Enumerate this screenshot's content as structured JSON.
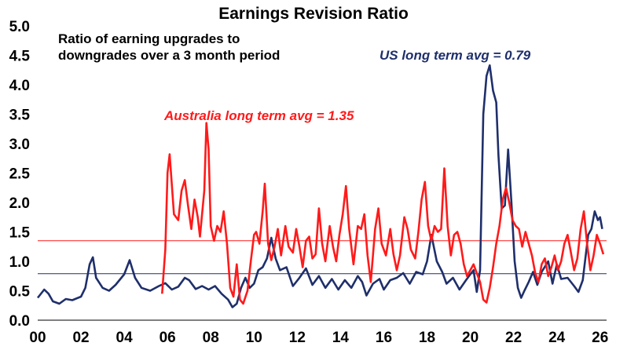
{
  "chart_data": {
    "type": "line",
    "title": "Earnings Revision Ratio",
    "annotations": {
      "description_line1": "Ratio of earning upgrades to",
      "description_line2": "downgrades over a 3 month period",
      "us_label": "US long term avg = 0.79",
      "au_label": "Australia long term avg = 1.35"
    },
    "x_tick_labels": [
      "00",
      "02",
      "04",
      "06",
      "08",
      "10",
      "12",
      "14",
      "16",
      "18",
      "20",
      "22",
      "24",
      "26"
    ],
    "y_tick_labels": [
      "0.0",
      "0.5",
      "1.0",
      "1.5",
      "2.0",
      "2.5",
      "3.0",
      "3.5",
      "4.0",
      "4.5",
      "5.0"
    ],
    "xlim": [
      2000,
      2026.3
    ],
    "ylim": [
      0,
      5
    ],
    "grid": false,
    "reference_lines": [
      {
        "name": "US long term avg",
        "value": 0.79,
        "color": "#1f2f6b"
      },
      {
        "name": "Australia long term avg",
        "value": 1.35,
        "color": "#ff1a1a"
      }
    ],
    "series": [
      {
        "name": "US",
        "color": "#1f2f6b",
        "points": [
          [
            2000.0,
            0.38
          ],
          [
            2000.3,
            0.52
          ],
          [
            2000.5,
            0.45
          ],
          [
            2000.7,
            0.32
          ],
          [
            2001.0,
            0.28
          ],
          [
            2001.3,
            0.36
          ],
          [
            2001.6,
            0.34
          ],
          [
            2002.0,
            0.4
          ],
          [
            2002.2,
            0.55
          ],
          [
            2002.4,
            0.95
          ],
          [
            2002.55,
            1.07
          ],
          [
            2002.7,
            0.72
          ],
          [
            2003.0,
            0.55
          ],
          [
            2003.3,
            0.5
          ],
          [
            2003.6,
            0.6
          ],
          [
            2004.0,
            0.78
          ],
          [
            2004.25,
            1.02
          ],
          [
            2004.5,
            0.72
          ],
          [
            2004.8,
            0.55
          ],
          [
            2005.2,
            0.5
          ],
          [
            2005.6,
            0.58
          ],
          [
            2005.9,
            0.63
          ],
          [
            2006.2,
            0.52
          ],
          [
            2006.5,
            0.57
          ],
          [
            2006.8,
            0.72
          ],
          [
            2007.0,
            0.68
          ],
          [
            2007.3,
            0.53
          ],
          [
            2007.6,
            0.58
          ],
          [
            2007.9,
            0.52
          ],
          [
            2008.2,
            0.58
          ],
          [
            2008.5,
            0.45
          ],
          [
            2008.8,
            0.35
          ],
          [
            2009.0,
            0.22
          ],
          [
            2009.2,
            0.28
          ],
          [
            2009.4,
            0.55
          ],
          [
            2009.6,
            0.72
          ],
          [
            2009.8,
            0.55
          ],
          [
            2010.0,
            0.62
          ],
          [
            2010.2,
            0.85
          ],
          [
            2010.4,
            0.9
          ],
          [
            2010.6,
            1.05
          ],
          [
            2010.8,
            1.4
          ],
          [
            2011.0,
            1.05
          ],
          [
            2011.2,
            0.85
          ],
          [
            2011.5,
            0.9
          ],
          [
            2011.8,
            0.58
          ],
          [
            2012.1,
            0.72
          ],
          [
            2012.4,
            0.88
          ],
          [
            2012.7,
            0.6
          ],
          [
            2013.0,
            0.75
          ],
          [
            2013.3,
            0.55
          ],
          [
            2013.6,
            0.7
          ],
          [
            2013.9,
            0.52
          ],
          [
            2014.2,
            0.68
          ],
          [
            2014.5,
            0.55
          ],
          [
            2014.8,
            0.75
          ],
          [
            2015.0,
            0.65
          ],
          [
            2015.2,
            0.42
          ],
          [
            2015.5,
            0.62
          ],
          [
            2015.8,
            0.7
          ],
          [
            2016.0,
            0.52
          ],
          [
            2016.3,
            0.68
          ],
          [
            2016.6,
            0.72
          ],
          [
            2016.9,
            0.8
          ],
          [
            2017.2,
            0.62
          ],
          [
            2017.5,
            0.82
          ],
          [
            2017.8,
            0.78
          ],
          [
            2018.0,
            1.0
          ],
          [
            2018.2,
            1.45
          ],
          [
            2018.45,
            1.0
          ],
          [
            2018.7,
            0.82
          ],
          [
            2018.9,
            0.62
          ],
          [
            2019.2,
            0.72
          ],
          [
            2019.5,
            0.52
          ],
          [
            2019.8,
            0.68
          ],
          [
            2020.0,
            0.78
          ],
          [
            2020.15,
            0.85
          ],
          [
            2020.3,
            0.48
          ],
          [
            2020.45,
            0.85
          ],
          [
            2020.6,
            3.5
          ],
          [
            2020.75,
            4.15
          ],
          [
            2020.9,
            4.33
          ],
          [
            2021.05,
            3.9
          ],
          [
            2021.2,
            3.7
          ],
          [
            2021.3,
            2.8
          ],
          [
            2021.45,
            1.9
          ],
          [
            2021.6,
            1.95
          ],
          [
            2021.75,
            2.9
          ],
          [
            2021.9,
            2.0
          ],
          [
            2022.05,
            1.0
          ],
          [
            2022.2,
            0.55
          ],
          [
            2022.35,
            0.38
          ],
          [
            2022.5,
            0.5
          ],
          [
            2022.7,
            0.65
          ],
          [
            2022.9,
            0.82
          ],
          [
            2023.1,
            0.6
          ],
          [
            2023.3,
            0.82
          ],
          [
            2023.6,
            1.0
          ],
          [
            2023.8,
            0.62
          ],
          [
            2024.0,
            0.95
          ],
          [
            2024.2,
            0.7
          ],
          [
            2024.5,
            0.72
          ],
          [
            2024.8,
            0.58
          ],
          [
            2025.0,
            0.48
          ],
          [
            2025.2,
            0.68
          ],
          [
            2025.45,
            1.45
          ],
          [
            2025.6,
            1.55
          ],
          [
            2025.75,
            1.85
          ],
          [
            2025.9,
            1.7
          ],
          [
            2026.0,
            1.75
          ],
          [
            2026.1,
            1.55
          ]
        ]
      },
      {
        "name": "Australia",
        "color": "#ff1a1a",
        "points": [
          [
            2005.75,
            0.45
          ],
          [
            2005.9,
            1.2
          ],
          [
            2006.0,
            2.5
          ],
          [
            2006.1,
            2.82
          ],
          [
            2006.3,
            1.8
          ],
          [
            2006.5,
            1.7
          ],
          [
            2006.65,
            2.2
          ],
          [
            2006.8,
            2.38
          ],
          [
            2006.95,
            1.95
          ],
          [
            2007.1,
            1.55
          ],
          [
            2007.25,
            2.05
          ],
          [
            2007.4,
            1.75
          ],
          [
            2007.5,
            1.42
          ],
          [
            2007.7,
            2.2
          ],
          [
            2007.8,
            3.35
          ],
          [
            2007.9,
            2.9
          ],
          [
            2008.0,
            1.6
          ],
          [
            2008.15,
            1.35
          ],
          [
            2008.3,
            1.6
          ],
          [
            2008.45,
            1.5
          ],
          [
            2008.6,
            1.85
          ],
          [
            2008.75,
            1.3
          ],
          [
            2008.9,
            0.55
          ],
          [
            2009.05,
            0.4
          ],
          [
            2009.2,
            0.95
          ],
          [
            2009.35,
            0.35
          ],
          [
            2009.5,
            0.28
          ],
          [
            2009.7,
            0.5
          ],
          [
            2009.85,
            1.0
          ],
          [
            2010.0,
            1.45
          ],
          [
            2010.1,
            1.5
          ],
          [
            2010.25,
            1.3
          ],
          [
            2010.4,
            1.85
          ],
          [
            2010.5,
            2.32
          ],
          [
            2010.65,
            1.3
          ],
          [
            2010.8,
            1.02
          ],
          [
            2010.95,
            1.25
          ],
          [
            2011.1,
            1.55
          ],
          [
            2011.25,
            1.1
          ],
          [
            2011.45,
            1.6
          ],
          [
            2011.6,
            1.25
          ],
          [
            2011.8,
            1.15
          ],
          [
            2011.95,
            1.55
          ],
          [
            2012.1,
            1.25
          ],
          [
            2012.25,
            0.9
          ],
          [
            2012.4,
            1.35
          ],
          [
            2012.55,
            1.42
          ],
          [
            2012.7,
            1.05
          ],
          [
            2012.85,
            1.12
          ],
          [
            2013.0,
            1.9
          ],
          [
            2013.15,
            1.3
          ],
          [
            2013.3,
            1.0
          ],
          [
            2013.5,
            1.6
          ],
          [
            2013.65,
            1.25
          ],
          [
            2013.8,
            1.0
          ],
          [
            2013.95,
            1.45
          ],
          [
            2014.1,
            1.8
          ],
          [
            2014.25,
            2.28
          ],
          [
            2014.4,
            1.55
          ],
          [
            2014.6,
            0.95
          ],
          [
            2014.8,
            1.6
          ],
          [
            2014.95,
            1.55
          ],
          [
            2015.1,
            1.8
          ],
          [
            2015.25,
            1.1
          ],
          [
            2015.4,
            0.65
          ],
          [
            2015.6,
            1.55
          ],
          [
            2015.75,
            1.9
          ],
          [
            2015.9,
            1.3
          ],
          [
            2016.1,
            1.1
          ],
          [
            2016.3,
            1.55
          ],
          [
            2016.45,
            1.12
          ],
          [
            2016.6,
            0.85
          ],
          [
            2016.75,
            1.1
          ],
          [
            2016.95,
            1.75
          ],
          [
            2017.1,
            1.55
          ],
          [
            2017.25,
            1.2
          ],
          [
            2017.45,
            1.05
          ],
          [
            2017.6,
            1.5
          ],
          [
            2017.75,
            2.05
          ],
          [
            2017.9,
            2.35
          ],
          [
            2018.05,
            1.6
          ],
          [
            2018.2,
            1.35
          ],
          [
            2018.35,
            1.6
          ],
          [
            2018.5,
            1.5
          ],
          [
            2018.65,
            1.55
          ],
          [
            2018.8,
            2.58
          ],
          [
            2018.95,
            1.6
          ],
          [
            2019.1,
            1.1
          ],
          [
            2019.25,
            1.45
          ],
          [
            2019.4,
            1.5
          ],
          [
            2019.55,
            1.3
          ],
          [
            2019.7,
            0.95
          ],
          [
            2019.85,
            0.75
          ],
          [
            2020.0,
            0.85
          ],
          [
            2020.15,
            0.95
          ],
          [
            2020.3,
            0.8
          ],
          [
            2020.45,
            0.65
          ],
          [
            2020.6,
            0.35
          ],
          [
            2020.75,
            0.3
          ],
          [
            2020.9,
            0.55
          ],
          [
            2021.05,
            0.9
          ],
          [
            2021.2,
            1.3
          ],
          [
            2021.35,
            1.6
          ],
          [
            2021.5,
            2.05
          ],
          [
            2021.65,
            2.25
          ],
          [
            2021.8,
            2.0
          ],
          [
            2021.95,
            1.7
          ],
          [
            2022.1,
            1.6
          ],
          [
            2022.25,
            1.55
          ],
          [
            2022.4,
            1.25
          ],
          [
            2022.55,
            1.5
          ],
          [
            2022.7,
            1.3
          ],
          [
            2022.85,
            1.1
          ],
          [
            2023.0,
            0.8
          ],
          [
            2023.15,
            0.65
          ],
          [
            2023.3,
            0.95
          ],
          [
            2023.45,
            1.05
          ],
          [
            2023.6,
            0.75
          ],
          [
            2023.75,
            0.9
          ],
          [
            2023.9,
            1.1
          ],
          [
            2024.05,
            0.85
          ],
          [
            2024.2,
            1.0
          ],
          [
            2024.35,
            1.3
          ],
          [
            2024.5,
            1.45
          ],
          [
            2024.65,
            1.15
          ],
          [
            2024.8,
            0.85
          ],
          [
            2024.95,
            1.05
          ],
          [
            2025.1,
            1.55
          ],
          [
            2025.25,
            1.85
          ],
          [
            2025.4,
            1.3
          ],
          [
            2025.55,
            0.85
          ],
          [
            2025.7,
            1.1
          ],
          [
            2025.85,
            1.45
          ],
          [
            2026.0,
            1.3
          ],
          [
            2026.15,
            1.12
          ]
        ]
      }
    ]
  }
}
